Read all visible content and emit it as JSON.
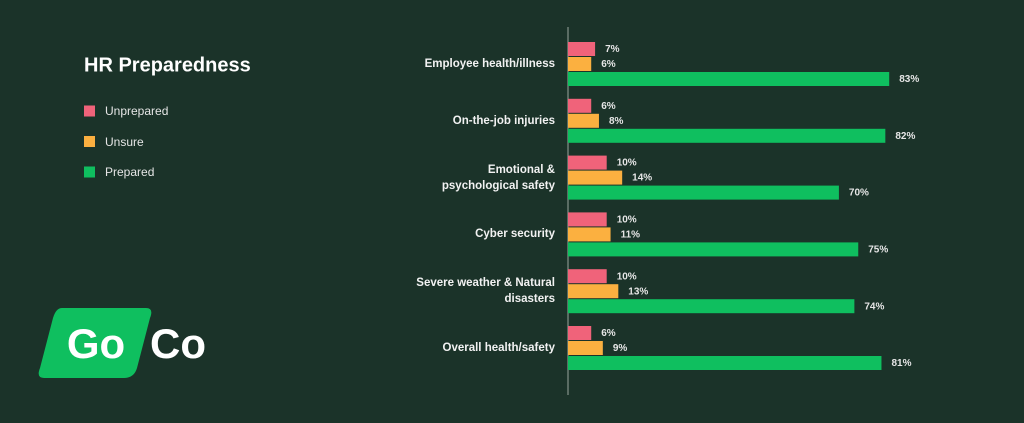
{
  "chart_data": {
    "type": "bar",
    "orientation": "horizontal",
    "title": "HR Preparedness",
    "categories": [
      "Employee health/illness",
      "On-the-job injuries",
      "Emotional &\npsychological safety",
      "Cyber security",
      "Severe weather & Natural\ndisasters",
      "Overall health/safety"
    ],
    "series": [
      {
        "name": "Unprepared",
        "color": "#f0637a",
        "values": [
          7,
          6,
          10,
          10,
          10,
          6
        ],
        "value_labels": [
          "7%",
          "6%",
          "10%",
          "10%",
          "10%",
          "6%"
        ]
      },
      {
        "name": "Unsure",
        "color": "#fbb040",
        "values": [
          6,
          8,
          14,
          11,
          13,
          9
        ],
        "value_labels": [
          "6%",
          "8%",
          "14%",
          "11%",
          "13%",
          "9%"
        ]
      },
      {
        "name": "Prepared",
        "color": "#0fbf5f",
        "values": [
          83,
          82,
          70,
          75,
          74,
          81
        ],
        "value_labels": [
          "83%",
          "82%",
          "70%",
          "75%",
          "74%",
          "81%"
        ]
      }
    ]
  },
  "logo": {
    "left": "Go",
    "right": "Co"
  }
}
